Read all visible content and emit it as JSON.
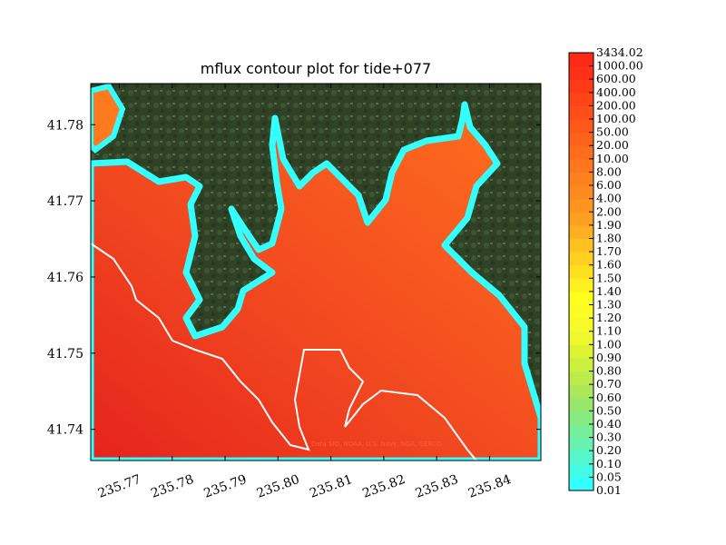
{
  "chart_data": {
    "type": "heatmap",
    "title": "mflux contour plot for tide+077",
    "xlabel": "",
    "ylabel": "",
    "xlim": [
      235.7646,
      235.8497
    ],
    "ylim": [
      41.7359,
      41.7854
    ],
    "x_ticks": [
      235.77,
      235.78,
      235.79,
      235.8,
      235.81,
      235.82,
      235.83,
      235.84
    ],
    "x_tick_labels": [
      "235.77",
      "235.78",
      "235.79",
      "235.80",
      "235.81",
      "235.82",
      "235.83",
      "235.84"
    ],
    "y_ticks": [
      41.74,
      41.75,
      41.76,
      41.77,
      41.78
    ],
    "y_tick_labels": [
      "41.74",
      "41.75",
      "41.76",
      "41.77",
      "41.78"
    ],
    "colorbar": {
      "levels": [
        "0.01",
        "0.05",
        "0.10",
        "0.20",
        "0.30",
        "0.40",
        "0.50",
        "0.60",
        "0.70",
        "0.80",
        "0.90",
        "1.00",
        "1.10",
        "1.20",
        "1.30",
        "1.40",
        "1.50",
        "1.60",
        "1.70",
        "1.80",
        "1.90",
        "2.00",
        "4.00",
        "6.00",
        "8.00",
        "10.00",
        "20.00",
        "50.00",
        "100.00",
        "200.00",
        "400.00",
        "600.00",
        "1000.00",
        "3434.02"
      ],
      "colors": [
        "#33ffff",
        "#44fbe4",
        "#55f7cb",
        "#66f3b1",
        "#77ef98",
        "#88eb80",
        "#99e66c",
        "#aae85a",
        "#bbec4c",
        "#ccf03e",
        "#ddf433",
        "#eef82c",
        "#f5fa28",
        "#fbfc24",
        "#ffff1f",
        "#fff020",
        "#ffe021",
        "#ffd022",
        "#ffc022",
        "#ffb022",
        "#ffa021",
        "#ff9520",
        "#ff8a1f",
        "#ff801e",
        "#ff761d",
        "#ff6c1c",
        "#ff621b",
        "#ff581a",
        "#ff4e19",
        "#ff4418",
        "#ff3a17",
        "#ff3016",
        "#ff2a15"
      ]
    },
    "attribution": "Data SIO, NOAA, U.S. Navy, NGA, GEBCO"
  }
}
